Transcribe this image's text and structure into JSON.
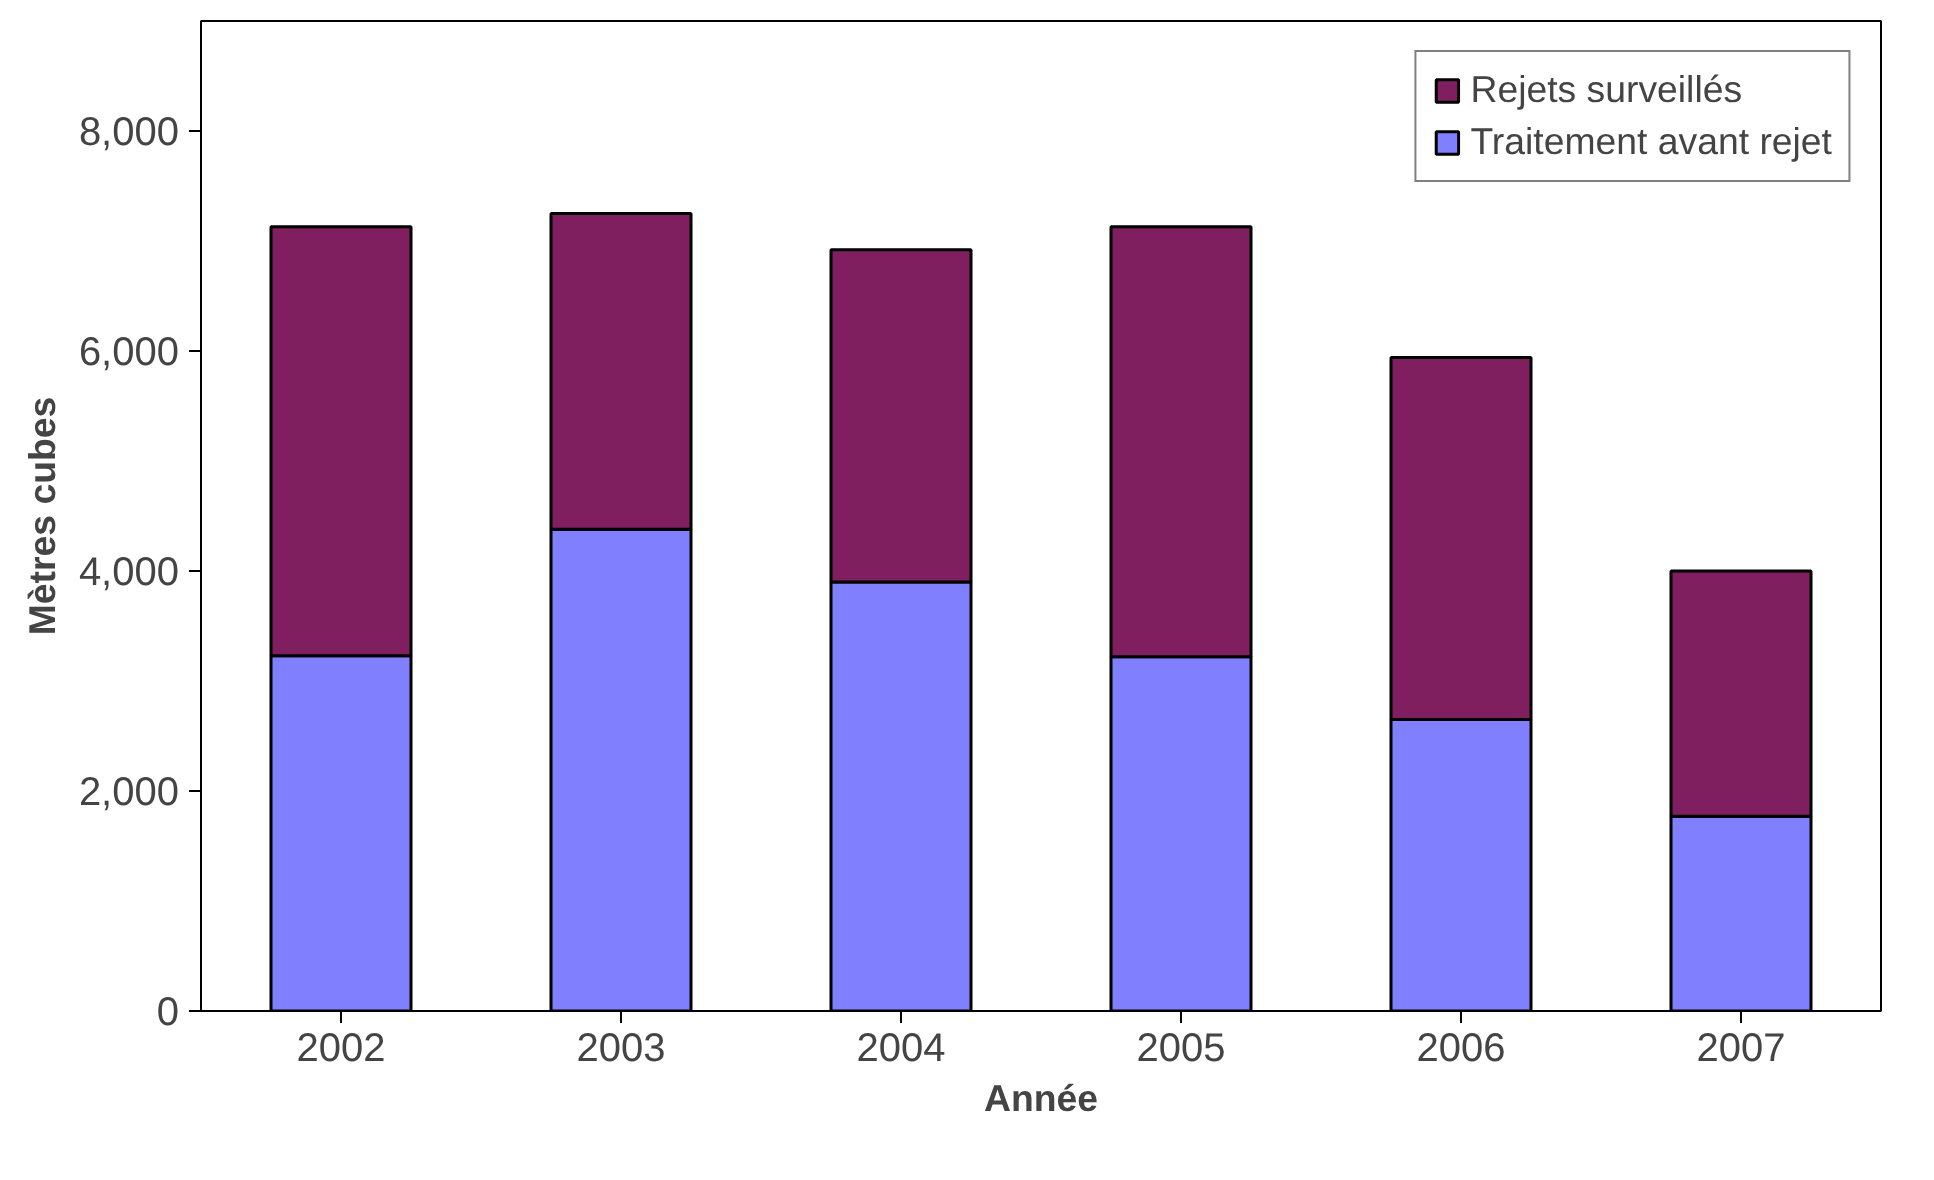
{
  "chart_data": {
    "type": "bar",
    "stacked": true,
    "xlabel": "Année",
    "ylabel": "Mètres cubes",
    "categories": [
      "2002",
      "2003",
      "2004",
      "2005",
      "2006",
      "2007"
    ],
    "series": [
      {
        "name": "Traitement avant rejet",
        "color": "#8080ff",
        "values": [
          3230,
          4380,
          3900,
          3220,
          2650,
          1770
        ]
      },
      {
        "name": "Rejets surveillés",
        "color": "#7f1f5f",
        "values": [
          3900,
          2870,
          3020,
          3910,
          3290,
          2230
        ]
      }
    ],
    "ylim": [
      0,
      9000
    ],
    "yticks": [
      0,
      {
        "value": 2000,
        "label": "2,000"
      },
      {
        "value": 4000,
        "label": "4,000"
      },
      {
        "value": 6000,
        "label": "6,000"
      },
      {
        "value": 8000,
        "label": "8,000"
      }
    ],
    "grid": false,
    "legend": "top right"
  }
}
